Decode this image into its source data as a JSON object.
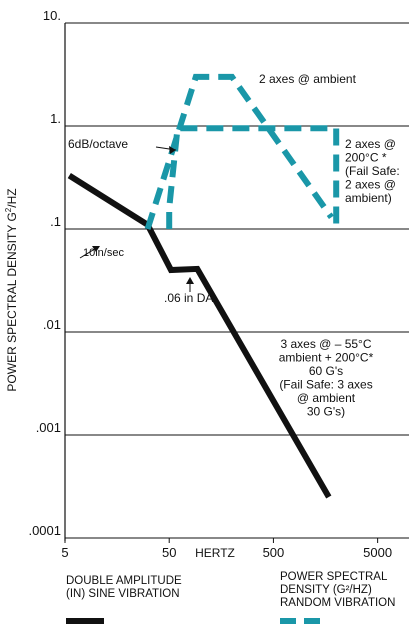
{
  "chart_data": {
    "type": "line",
    "xlabel": "HERTZ",
    "ylabel_base": "POWER SPECTRAL DENSITY G",
    "ylabel_sup": "2",
    "ylabel_tail": "/HZ",
    "x_scale": "log",
    "y_scale": "log",
    "xlim": [
      5,
      10000
    ],
    "ylim": [
      0.0001,
      10
    ],
    "x_ticks": [
      {
        "value": 5,
        "label": "5"
      },
      {
        "value": 50,
        "label": "50"
      },
      {
        "value": 500,
        "label": "500"
      },
      {
        "value": 5000,
        "label": "5000"
      }
    ],
    "y_ticks": [
      {
        "value": 10,
        "label": "10."
      },
      {
        "value": 1,
        "label": "1."
      },
      {
        "value": 0.1,
        "label": ".1"
      },
      {
        "value": 0.01,
        "label": ".01"
      },
      {
        "value": 0.001,
        "label": ".001"
      },
      {
        "value": 0.0001,
        "label": ".0001"
      }
    ],
    "grid": "horizontal",
    "series": [
      {
        "name": "DOUBLE AMPLITUDE (IN) SINE VIBRATION",
        "style": "solid",
        "color": "#111111",
        "points": [
          [
            5.5,
            0.33
          ],
          [
            31,
            0.11
          ],
          [
            52,
            0.04
          ],
          [
            93,
            0.041
          ],
          [
            1700,
            0.00025
          ]
        ]
      },
      {
        "name": "2 axes @ ambient",
        "style": "dashed",
        "color": "#1a97a8",
        "points": [
          [
            31,
            0.1
          ],
          [
            90,
            3.0
          ],
          [
            200,
            3.0
          ],
          [
            1800,
            0.13
          ]
        ]
      },
      {
        "name": "2 axes @ 200°C",
        "style": "dashed",
        "color": "#1a97a8",
        "points": [
          [
            50,
            0.1
          ],
          [
            50,
            0.16
          ],
          [
            60,
            0.95
          ],
          [
            2000,
            0.95
          ],
          [
            2000,
            0.1
          ]
        ]
      }
    ],
    "annotations": [
      {
        "id": "ambient",
        "lines": [
          "2 axes @ ambient"
        ]
      },
      {
        "id": "hot",
        "lines": [
          "2 axes @",
          "200°C *",
          "(Fail Safe:",
          "2 axes @",
          "ambient)"
        ]
      },
      {
        "id": "slope",
        "lines": [
          "6dB/octave"
        ]
      },
      {
        "id": "vel",
        "lines": [
          "10in/sec"
        ]
      },
      {
        "id": "da",
        "lines": [
          ".06 in DA."
        ]
      },
      {
        "id": "sine",
        "lines": [
          "3 axes @  – 55°C",
          "ambient + 200°C*",
          "60 G's",
          "(Fail Safe: 3 axes",
          "@ ambient",
          "30 G's)"
        ]
      }
    ],
    "legend": [
      {
        "lines": [
          "DOUBLE AMPLITUDE",
          "(IN) SINE VIBRATION"
        ],
        "style": "solid",
        "color": "#111111"
      },
      {
        "lines": [
          "POWER SPECTRAL",
          "DENSITY (G²/HZ)",
          "RANDOM VIBRATION"
        ],
        "style": "dashed",
        "color": "#1a97a8"
      }
    ]
  }
}
